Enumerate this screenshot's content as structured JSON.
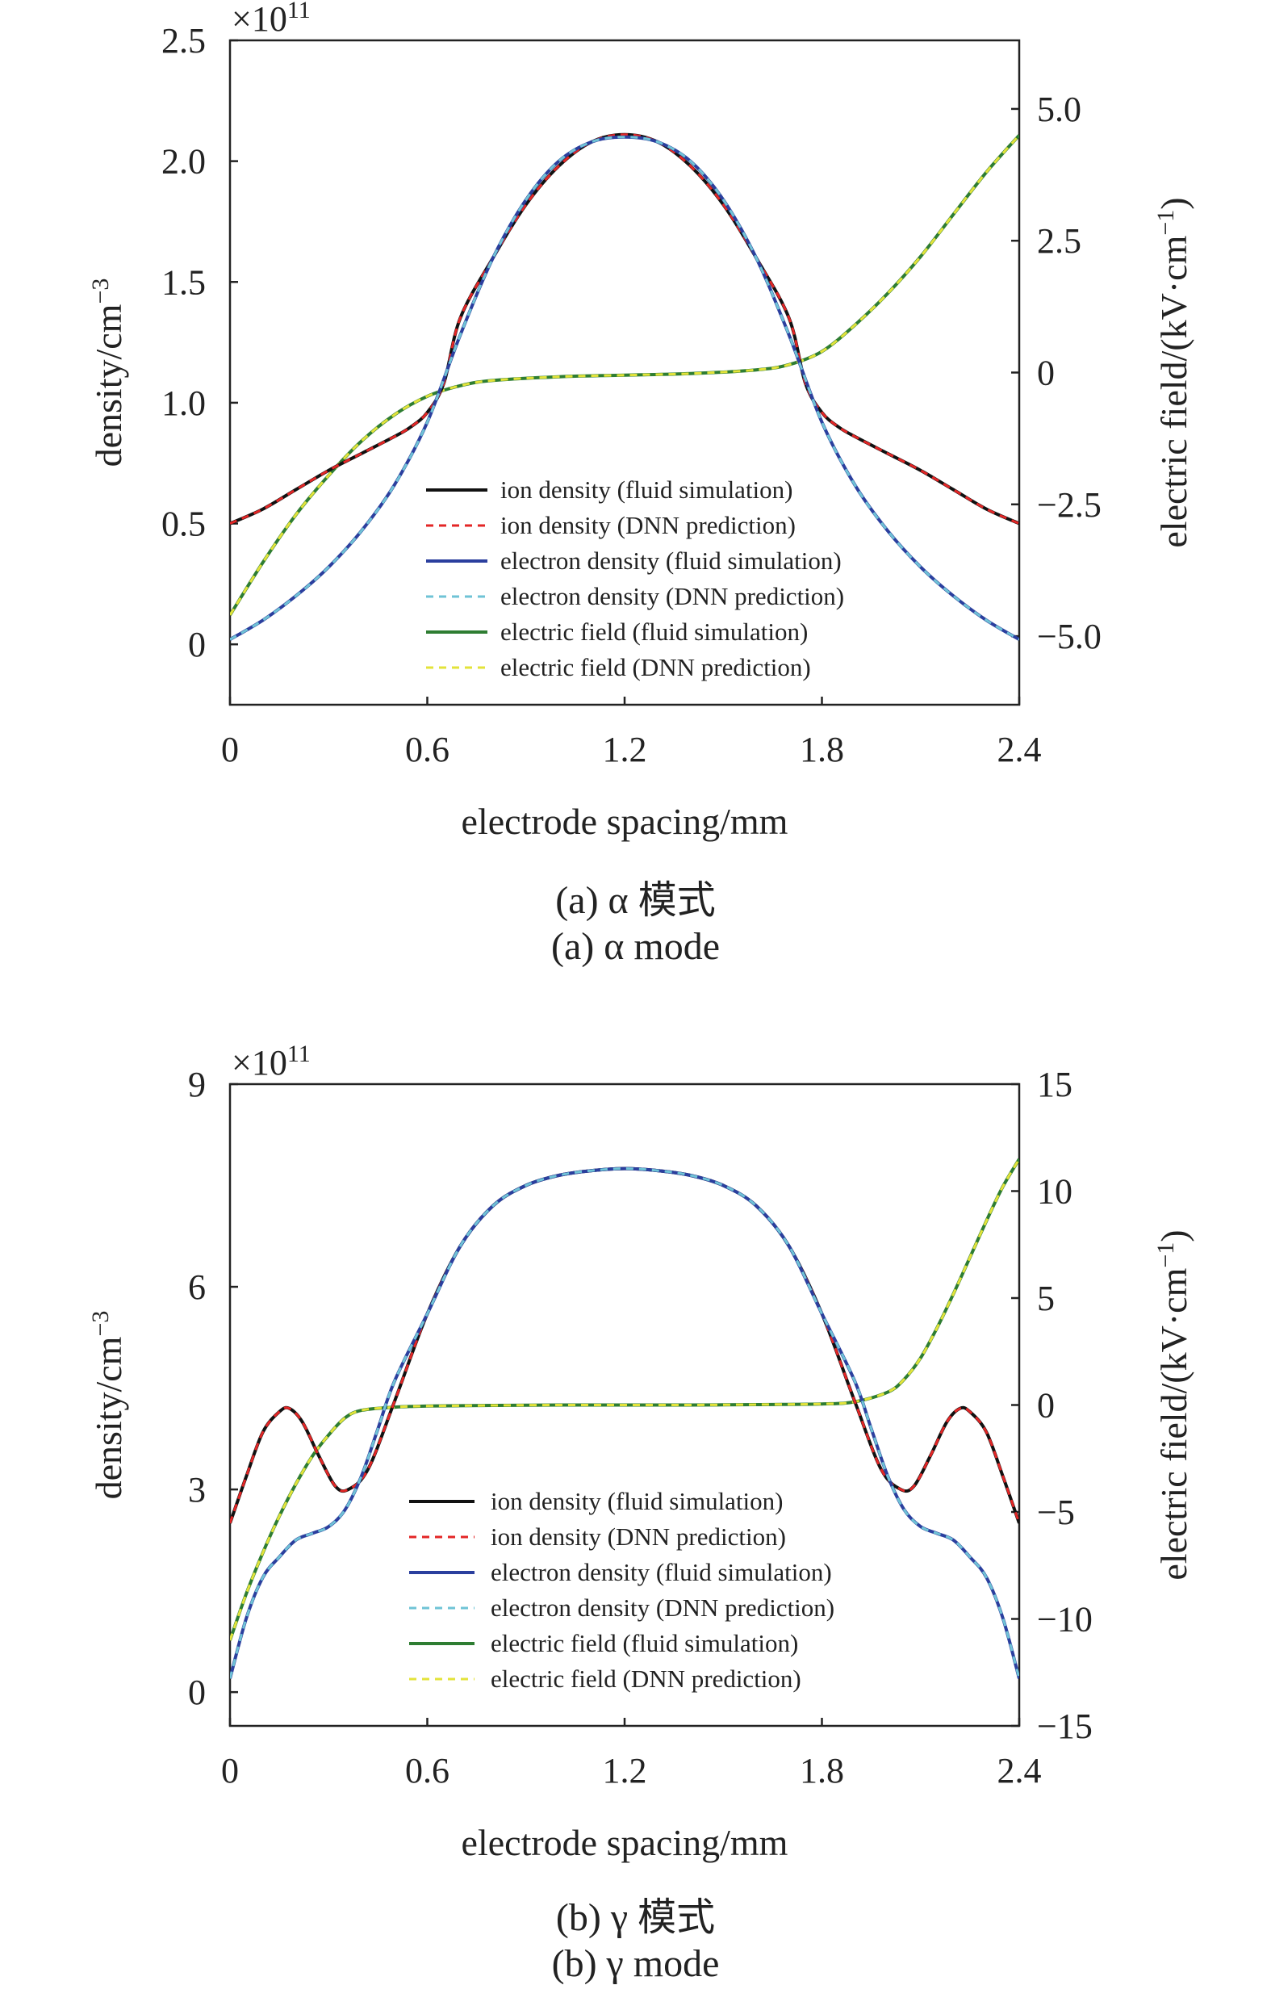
{
  "chart_data": [
    {
      "type": "line",
      "xlabel": "electrode spacing/mm",
      "ylabel": "density/cm",
      "ylabel_sup": "−3",
      "y2label": "electric field/(kV·cm",
      "y2label_sup": "−1",
      "y2label_tail": ")",
      "y_multiplier": "×10",
      "y_multiplier_sup": "11",
      "xlim": [
        0,
        2.4
      ],
      "ylim": [
        -0.25,
        2.5
      ],
      "y2lim": [
        -6.3,
        6.3
      ],
      "x_ticks": [
        "0",
        "0.6",
        "1.2",
        "1.8",
        "2.4"
      ],
      "y_ticks": [
        "0",
        "0.5",
        "1.0",
        "1.5",
        "2.0",
        "2.5"
      ],
      "y2_ticks": [
        "−5.0",
        "−2.5",
        "0",
        "2.5",
        "5.0"
      ],
      "caption_cn": "(a) α 模式",
      "caption_en": "(a) α mode",
      "legend": [
        {
          "label": "ion density (fluid simulation)",
          "color": "#111111",
          "dash": false
        },
        {
          "label": "ion density (DNN prediction)",
          "color": "#e32626",
          "dash": true
        },
        {
          "label": "electron density (fluid simulation)",
          "color": "#2b3f9e",
          "dash": false
        },
        {
          "label": "electron density (DNN prediction)",
          "color": "#6fc3d6",
          "dash": true
        },
        {
          "label": "electric field (fluid simulation)",
          "color": "#2e7d32",
          "dash": false
        },
        {
          "label": "electric field (DNN prediction)",
          "color": "#e3e33a",
          "dash": true
        }
      ],
      "series": [
        {
          "name": "ion density",
          "axis": "left",
          "x": [
            0,
            0.1,
            0.2,
            0.3,
            0.4,
            0.5,
            0.55,
            0.6,
            0.65,
            0.7,
            0.8,
            0.9,
            1.0,
            1.1,
            1.2,
            1.3,
            1.4,
            1.5,
            1.6,
            1.7,
            1.75,
            1.8,
            1.85,
            1.9,
            2.0,
            2.1,
            2.2,
            2.3,
            2.4
          ],
          "y": [
            0.5,
            0.56,
            0.64,
            0.72,
            0.79,
            0.86,
            0.9,
            0.96,
            1.08,
            1.35,
            1.6,
            1.82,
            1.98,
            2.08,
            2.11,
            2.08,
            1.98,
            1.82,
            1.6,
            1.35,
            1.08,
            0.96,
            0.9,
            0.86,
            0.79,
            0.72,
            0.64,
            0.56,
            0.5
          ]
        },
        {
          "name": "electron density",
          "axis": "left",
          "x": [
            0,
            0.1,
            0.2,
            0.3,
            0.4,
            0.5,
            0.6,
            0.7,
            0.8,
            0.9,
            1.0,
            1.1,
            1.2,
            1.3,
            1.4,
            1.5,
            1.6,
            1.7,
            1.8,
            1.9,
            2.0,
            2.1,
            2.2,
            2.3,
            2.4
          ],
          "y": [
            0.02,
            0.1,
            0.2,
            0.32,
            0.47,
            0.66,
            0.92,
            1.28,
            1.6,
            1.84,
            2.0,
            2.08,
            2.1,
            2.08,
            2.0,
            1.84,
            1.6,
            1.28,
            0.92,
            0.66,
            0.47,
            0.32,
            0.2,
            0.1,
            0.02
          ]
        },
        {
          "name": "electric field",
          "axis": "right",
          "x": [
            0,
            0.1,
            0.2,
            0.3,
            0.4,
            0.5,
            0.6,
            0.7,
            0.8,
            1.0,
            1.2,
            1.4,
            1.6,
            1.7,
            1.8,
            1.9,
            2.0,
            2.1,
            2.2,
            2.3,
            2.4
          ],
          "y": [
            -4.6,
            -3.6,
            -2.7,
            -1.95,
            -1.3,
            -0.8,
            -0.45,
            -0.25,
            -0.15,
            -0.08,
            -0.05,
            -0.02,
            0.05,
            0.15,
            0.4,
            0.9,
            1.5,
            2.2,
            3.0,
            3.8,
            4.5
          ]
        }
      ]
    },
    {
      "type": "line",
      "xlabel": "electrode spacing/mm",
      "ylabel": "density/cm",
      "ylabel_sup": "−3",
      "y2label": "electric field/(kV·cm",
      "y2label_sup": "−1",
      "y2label_tail": ")",
      "y_multiplier": "×10",
      "y_multiplier_sup": "11",
      "xlim": [
        0,
        2.4
      ],
      "ylim": [
        -0.5,
        9
      ],
      "y2lim": [
        -15,
        15
      ],
      "x_ticks": [
        "0",
        "0.6",
        "1.2",
        "1.8",
        "2.4"
      ],
      "y_ticks": [
        "0",
        "3",
        "6",
        "9"
      ],
      "y2_ticks": [
        "−15",
        "−10",
        "−5",
        "0",
        "5",
        "10",
        "15"
      ],
      "caption_cn": "(b) γ 模式",
      "caption_en": "(b) γ mode",
      "legend": [
        {
          "label": "ion density (fluid simulation)",
          "color": "#111111",
          "dash": false
        },
        {
          "label": "ion density (DNN prediction)",
          "color": "#e32626",
          "dash": true
        },
        {
          "label": "electron density (fluid simulation)",
          "color": "#2b3f9e",
          "dash": false
        },
        {
          "label": "electron density (DNN prediction)",
          "color": "#6fc3d6",
          "dash": true
        },
        {
          "label": "electric field (fluid simulation)",
          "color": "#2e7d32",
          "dash": false
        },
        {
          "label": "electric field (DNN prediction)",
          "color": "#e3e33a",
          "dash": true
        }
      ],
      "series": [
        {
          "name": "ion density",
          "axis": "left",
          "x": [
            0,
            0.05,
            0.1,
            0.15,
            0.18,
            0.22,
            0.27,
            0.32,
            0.36,
            0.42,
            0.5,
            0.6,
            0.7,
            0.8,
            0.9,
            1.0,
            1.1,
            1.2,
            1.3,
            1.4,
            1.5,
            1.6,
            1.7,
            1.8,
            1.9,
            1.98,
            2.04,
            2.08,
            2.13,
            2.18,
            2.22,
            2.25,
            2.3,
            2.35,
            2.4
          ],
          "y": [
            2.5,
            3.2,
            3.85,
            4.15,
            4.2,
            4.0,
            3.5,
            3.05,
            3.0,
            3.3,
            4.3,
            5.6,
            6.6,
            7.2,
            7.5,
            7.65,
            7.72,
            7.75,
            7.72,
            7.65,
            7.5,
            7.2,
            6.6,
            5.6,
            4.3,
            3.3,
            3.0,
            3.05,
            3.5,
            4.0,
            4.2,
            4.15,
            3.85,
            3.2,
            2.5
          ]
        },
        {
          "name": "electron density",
          "axis": "left",
          "x": [
            0,
            0.05,
            0.1,
            0.15,
            0.2,
            0.25,
            0.3,
            0.35,
            0.4,
            0.45,
            0.5,
            0.6,
            0.7,
            0.8,
            0.9,
            1.0,
            1.1,
            1.2,
            1.3,
            1.4,
            1.5,
            1.6,
            1.7,
            1.8,
            1.9,
            1.95,
            2.0,
            2.05,
            2.1,
            2.15,
            2.2,
            2.25,
            2.3,
            2.35,
            2.4
          ],
          "y": [
            0.2,
            1.1,
            1.7,
            2.0,
            2.25,
            2.35,
            2.45,
            2.7,
            3.2,
            3.9,
            4.6,
            5.6,
            6.6,
            7.2,
            7.5,
            7.65,
            7.72,
            7.75,
            7.72,
            7.65,
            7.5,
            7.2,
            6.6,
            5.6,
            4.6,
            3.9,
            3.2,
            2.7,
            2.45,
            2.35,
            2.25,
            2.0,
            1.7,
            1.1,
            0.2
          ]
        },
        {
          "name": "electric field",
          "axis": "right",
          "x": [
            0,
            0.05,
            0.1,
            0.15,
            0.2,
            0.25,
            0.3,
            0.35,
            0.4,
            0.5,
            0.6,
            0.8,
            1.0,
            1.2,
            1.4,
            1.6,
            1.8,
            1.9,
            2.0,
            2.05,
            2.1,
            2.15,
            2.2,
            2.25,
            2.3,
            2.35,
            2.4
          ],
          "y": [
            -11,
            -8.8,
            -6.9,
            -5.2,
            -3.7,
            -2.4,
            -1.4,
            -0.6,
            -0.25,
            -0.1,
            -0.05,
            -0.02,
            0.0,
            0.0,
            0.0,
            0.02,
            0.05,
            0.15,
            0.6,
            1.2,
            2.2,
            3.6,
            5.2,
            6.9,
            8.6,
            10.2,
            11.5
          ]
        }
      ]
    }
  ]
}
